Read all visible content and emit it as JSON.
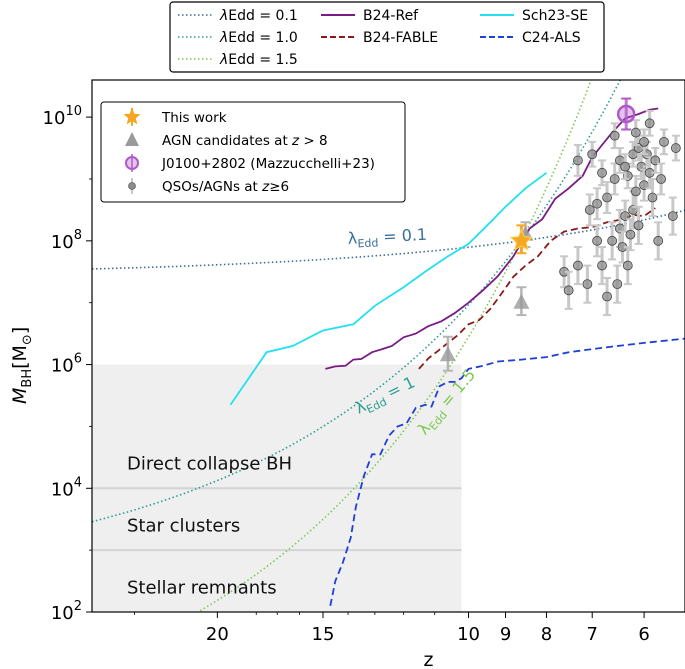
{
  "chart_data": {
    "type": "line",
    "title": "",
    "xlabel": "z",
    "ylabel_main": "M",
    "ylabel_sub": "BH",
    "ylabel_unit_open": "[M",
    "ylabel_unit_sub": "⊙",
    "ylabel_unit_close": "]",
    "x_scale": "log(1+z)",
    "y_scale": "log10",
    "xlim": [
      28,
      5.3
    ],
    "ylim_log10": [
      2,
      10.6
    ],
    "x_ticks": [
      {
        "z": 20,
        "label": "20"
      },
      {
        "z": 15,
        "label": "15"
      },
      {
        "z": 10,
        "label": "10"
      },
      {
        "z": 9,
        "label": "9"
      },
      {
        "z": 8,
        "label": "8"
      },
      {
        "z": 7,
        "label": "7"
      },
      {
        "z": 6,
        "label": "6"
      }
    ],
    "y_ticks": [
      {
        "log": 2,
        "base": "10",
        "exp": "2"
      },
      {
        "log": 4,
        "base": "10",
        "exp": "4"
      },
      {
        "log": 6,
        "base": "10",
        "exp": "6"
      },
      {
        "log": 8,
        "base": "10",
        "exp": "8"
      },
      {
        "log": 10,
        "base": "10",
        "exp": "10"
      }
    ],
    "regions": [
      {
        "name": "seed-region",
        "z_from": 28,
        "z_to": 10.2,
        "log_from": 2,
        "log_to": 6,
        "color": "#efefef"
      }
    ],
    "seed_dividers_log": [
      4,
      3
    ],
    "region_labels": [
      {
        "text": "Direct collapse BH",
        "z": 25.5,
        "log": 4.4
      },
      {
        "text": "Star clusters",
        "z": 25.5,
        "log": 3.4
      },
      {
        "text": "Stellar remnants",
        "z": 25.5,
        "log": 2.4
      }
    ],
    "eddington_tracks": [
      {
        "name": "λEdd = 0.1",
        "legend_label": "λEdd = 0.1",
        "color": "#3a6f9e",
        "lambda": 0.1,
        "anchor_z": 8.6,
        "anchor_log": 8.0,
        "label_main": "λ",
        "label_sub": "Edd",
        "label_value": " = 0.1",
        "label_z": 14.0,
        "label_log": 7.95,
        "label_angle": -3
      },
      {
        "name": "λEdd = 1.0",
        "legend_label": "λEdd = 1.0",
        "color": "#2a9d8f",
        "lambda": 1.0,
        "anchor_z": 8.6,
        "anchor_log": 8.0,
        "label_main": "λ",
        "label_sub": "Edd",
        "label_value": " = 1",
        "label_z": 13.6,
        "label_log": 5.2,
        "label_angle": -26
      },
      {
        "name": "λEdd = 1.5",
        "legend_label": "λEdd = 1.5",
        "color": "#7ec850",
        "lambda": 1.5,
        "anchor_z": 8.6,
        "anchor_log": 8.0,
        "label_main": "λ",
        "label_sub": "Edd",
        "label_value": " = 1.5",
        "label_z": 11.3,
        "label_log": 4.85,
        "label_angle": -50
      }
    ],
    "series": [
      {
        "name": "B24-Ref",
        "color": "#7a1a86",
        "dash": "",
        "points": [
          [
            14.9,
            5.93
          ],
          [
            14.5,
            5.97
          ],
          [
            14.1,
            5.98
          ],
          [
            13.8,
            6.08
          ],
          [
            13.5,
            6.09
          ],
          [
            13.1,
            6.2
          ],
          [
            12.8,
            6.24
          ],
          [
            12.4,
            6.3
          ],
          [
            12.0,
            6.44
          ],
          [
            11.6,
            6.5
          ],
          [
            11.2,
            6.62
          ],
          [
            10.8,
            6.7
          ],
          [
            10.4,
            6.83
          ],
          [
            10.0,
            7.0
          ],
          [
            9.6,
            7.2
          ],
          [
            9.2,
            7.43
          ],
          [
            8.8,
            7.75
          ],
          [
            8.4,
            8.2
          ],
          [
            8.1,
            8.35
          ],
          [
            7.8,
            8.68
          ],
          [
            7.5,
            8.85
          ],
          [
            7.2,
            9.05
          ],
          [
            7.0,
            9.35
          ],
          [
            6.8,
            9.55
          ],
          [
            6.6,
            9.75
          ],
          [
            6.35,
            9.98
          ],
          [
            6.1,
            10.05
          ],
          [
            5.9,
            10.12
          ],
          [
            5.75,
            10.14
          ]
        ]
      },
      {
        "name": "B24-FABLE",
        "color": "#8b1a1a",
        "dash": "7,4",
        "points": [
          [
            11.5,
            5.93
          ],
          [
            11.2,
            6.1
          ],
          [
            10.9,
            6.22
          ],
          [
            10.6,
            6.35
          ],
          [
            10.3,
            6.48
          ],
          [
            10.0,
            6.65
          ],
          [
            9.7,
            6.72
          ],
          [
            9.4,
            6.9
          ],
          [
            9.1,
            7.15
          ],
          [
            8.8,
            7.42
          ],
          [
            8.5,
            7.6
          ],
          [
            8.2,
            7.75
          ],
          [
            7.9,
            8.0
          ],
          [
            7.6,
            8.15
          ],
          [
            7.3,
            8.2
          ],
          [
            7.0,
            8.22
          ],
          [
            6.7,
            8.3
          ],
          [
            6.4,
            8.35
          ],
          [
            6.2,
            8.42
          ],
          [
            6.0,
            8.4
          ],
          [
            5.8,
            8.53
          ]
        ]
      },
      {
        "name": "Sch23-SE",
        "color": "#22e0f0",
        "dash": "",
        "points": [
          [
            19.3,
            5.35
          ],
          [
            17.5,
            6.2
          ],
          [
            16.3,
            6.3
          ],
          [
            15.0,
            6.55
          ],
          [
            13.8,
            6.65
          ],
          [
            13.0,
            6.95
          ],
          [
            12.0,
            7.25
          ],
          [
            11.3,
            7.5
          ],
          [
            10.6,
            7.75
          ],
          [
            10.0,
            7.95
          ],
          [
            9.4,
            8.3
          ],
          [
            9.0,
            8.55
          ],
          [
            8.5,
            8.85
          ],
          [
            8.0,
            9.1
          ]
        ]
      },
      {
        "name": "C24-ALS",
        "color": "#1f3fd6",
        "dash": "7,4",
        "points": [
          [
            14.7,
            2.1
          ],
          [
            14.5,
            2.5
          ],
          [
            14.2,
            2.8
          ],
          [
            13.9,
            3.2
          ],
          [
            13.7,
            3.7
          ],
          [
            13.4,
            4.2
          ],
          [
            13.1,
            4.55
          ],
          [
            12.8,
            4.55
          ],
          [
            12.5,
            4.85
          ],
          [
            12.2,
            5.0
          ],
          [
            11.9,
            5.05
          ],
          [
            11.6,
            5.3
          ],
          [
            11.3,
            5.35
          ],
          [
            11.1,
            5.32
          ],
          [
            10.85,
            5.65
          ],
          [
            10.6,
            5.72
          ],
          [
            10.4,
            5.72
          ],
          [
            10.2,
            5.78
          ],
          [
            10.0,
            5.93
          ],
          [
            9.6,
            5.98
          ],
          [
            9.2,
            6.05
          ],
          [
            8.6,
            6.08
          ],
          [
            8.0,
            6.12
          ],
          [
            7.5,
            6.2
          ],
          [
            7.0,
            6.25
          ],
          [
            6.5,
            6.3
          ],
          [
            6.0,
            6.35
          ],
          [
            5.3,
            6.42
          ]
        ]
      }
    ],
    "markers": {
      "this_work": {
        "name": "This work",
        "z": 8.6,
        "log": 8.0,
        "err_lo": 0.2,
        "err_hi": 0.25,
        "color": "#f5a623"
      },
      "agn_candidates": {
        "name": "AGN candidates at z > 8",
        "points": [
          [
            10.6,
            6.15,
            0.25,
            0.3
          ],
          [
            8.6,
            7.0,
            0.2,
            0.25
          ],
          [
            8.5,
            8.1,
            0.2,
            0.2
          ]
        ],
        "color": "#9a9a9a"
      },
      "j0100": {
        "name": "J0100+2802 (Mazzucchelli+23)",
        "z": 6.33,
        "log": 10.05,
        "err": 0.25,
        "color": "#b05ac8"
      },
      "qsos": {
        "name": "QSOs/AGNs at z≥6",
        "color": "#8c8c8c",
        "points": [
          [
            7.6,
            7.5,
            0.25
          ],
          [
            7.5,
            7.2,
            0.3
          ],
          [
            7.3,
            7.6,
            0.3
          ],
          [
            7.1,
            7.3,
            0.3
          ],
          [
            6.9,
            8.0,
            0.25
          ],
          [
            6.8,
            7.6,
            0.3
          ],
          [
            6.7,
            7.1,
            0.3
          ],
          [
            6.6,
            8.0,
            0.3
          ],
          [
            6.5,
            7.3,
            0.3
          ],
          [
            6.45,
            8.2,
            0.3
          ],
          [
            6.4,
            7.9,
            0.25
          ],
          [
            6.35,
            8.4,
            0.25
          ],
          [
            6.3,
            7.6,
            0.3
          ],
          [
            6.25,
            8.1,
            0.25
          ],
          [
            6.2,
            8.5,
            0.3
          ],
          [
            6.15,
            8.8,
            0.25
          ],
          [
            6.1,
            8.25,
            0.3
          ],
          [
            6.05,
            9.2,
            0.2
          ],
          [
            6.0,
            8.9,
            0.25
          ],
          [
            5.95,
            9.4,
            0.2
          ],
          [
            5.9,
            9.1,
            0.25
          ],
          [
            5.85,
            8.7,
            0.3
          ],
          [
            5.8,
            9.3,
            0.2
          ],
          [
            5.75,
            8.0,
            0.3
          ],
          [
            5.7,
            9.0,
            0.25
          ],
          [
            5.65,
            9.6,
            0.2
          ],
          [
            6.9,
            8.6,
            0.25
          ],
          [
            6.7,
            8.7,
            0.25
          ],
          [
            6.55,
            9.0,
            0.25
          ],
          [
            6.45,
            9.3,
            0.2
          ],
          [
            6.3,
            9.05,
            0.2
          ],
          [
            6.2,
            9.4,
            0.2
          ],
          [
            6.1,
            9.5,
            0.2
          ],
          [
            6.0,
            9.6,
            0.2
          ],
          [
            6.55,
            9.7,
            0.2
          ],
          [
            6.35,
            9.2,
            0.2
          ],
          [
            5.5,
            8.4,
            0.3
          ],
          [
            5.45,
            9.5,
            0.2
          ],
          [
            6.8,
            9.1,
            0.2
          ],
          [
            7.0,
            9.4,
            0.2
          ],
          [
            7.3,
            9.3,
            0.25
          ],
          [
            7.05,
            8.5,
            0.25
          ],
          [
            5.9,
            9.9,
            0.2
          ],
          [
            6.15,
            9.75,
            0.2
          ]
        ]
      }
    },
    "top_legend": [
      {
        "label": "λEdd = 0.1",
        "style": "dotted",
        "color": "#3a6f9e"
      },
      {
        "label": "λEdd = 1.0",
        "style": "dotted",
        "color": "#2a9d8f"
      },
      {
        "label": "λEdd = 1.5",
        "style": "dotted",
        "color": "#7ec850"
      },
      {
        "label": "B24-Ref",
        "style": "solid",
        "color": "#7a1a86"
      },
      {
        "label": "B24-FABLE",
        "style": "dashed",
        "color": "#8b1a1a"
      },
      {
        "label": "Sch23-SE",
        "style": "solid",
        "color": "#22e0f0"
      },
      {
        "label": "C24-ALS",
        "style": "dashed",
        "color": "#1f3fd6"
      }
    ],
    "legend_parts": {
      "lambda": "λ",
      "edd": "Edd",
      "agn_prefix": "AGN candidates at ",
      "agn_z": "z",
      "agn_suffix": " > 8",
      "qso_prefix": "QSOs/AGNs at ",
      "qso_z": "z",
      "qso_suffix": "≥6"
    }
  }
}
